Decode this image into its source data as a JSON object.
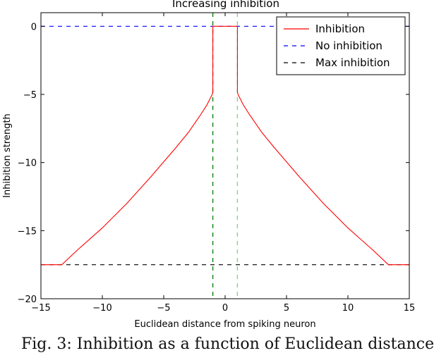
{
  "chart_data": {
    "type": "line",
    "title": "Increasing inhibition",
    "xlabel": "Euclidean distance from spiking neuron",
    "ylabel": "Inhibition strength",
    "xlim": [
      -15,
      15
    ],
    "ylim": [
      -20,
      1
    ],
    "xticks": [
      -15,
      -10,
      -5,
      0,
      5,
      10,
      15
    ],
    "yticks": [
      0,
      -5,
      -10,
      -15,
      -20
    ],
    "grid": false,
    "legend_position": "top-right",
    "series": [
      {
        "name": "Inhibition",
        "color": "#ff0000",
        "style": "solid",
        "x": [
          -15,
          -13.3,
          -12,
          -10,
          -8,
          -6,
          -4,
          -3,
          -2,
          -1.5,
          -1.05,
          -1.0,
          -1.0,
          1.0,
          1.0,
          1.05,
          1.5,
          2,
          3,
          4,
          6,
          8,
          10,
          12,
          13.3,
          15
        ],
        "y": [
          -17.5,
          -17.5,
          -16.4,
          -14.8,
          -13.0,
          -11.0,
          -8.9,
          -7.8,
          -6.5,
          -5.8,
          -5.0,
          -4.8,
          0,
          0,
          -4.8,
          -5.0,
          -5.8,
          -6.5,
          -7.8,
          -8.9,
          -11.0,
          -13.0,
          -14.8,
          -16.4,
          -17.5,
          -17.5
        ]
      },
      {
        "name": "No inhibition",
        "color": "#0000ff",
        "style": "dashed",
        "x": [
          -15,
          15
        ],
        "y": [
          0,
          0
        ]
      },
      {
        "name": "Max inhibition",
        "color": "#000000",
        "style": "dashed",
        "x": [
          -15,
          15
        ],
        "y": [
          -17.5,
          -17.5
        ]
      }
    ],
    "vertical_lines": [
      {
        "x": -1,
        "color": "#007f00",
        "style": "dashed"
      },
      {
        "x": 1,
        "color": "#7fd07f",
        "style": "dashed"
      }
    ]
  },
  "caption": "Fig. 3: Inhibition as a function of Euclidean distance"
}
